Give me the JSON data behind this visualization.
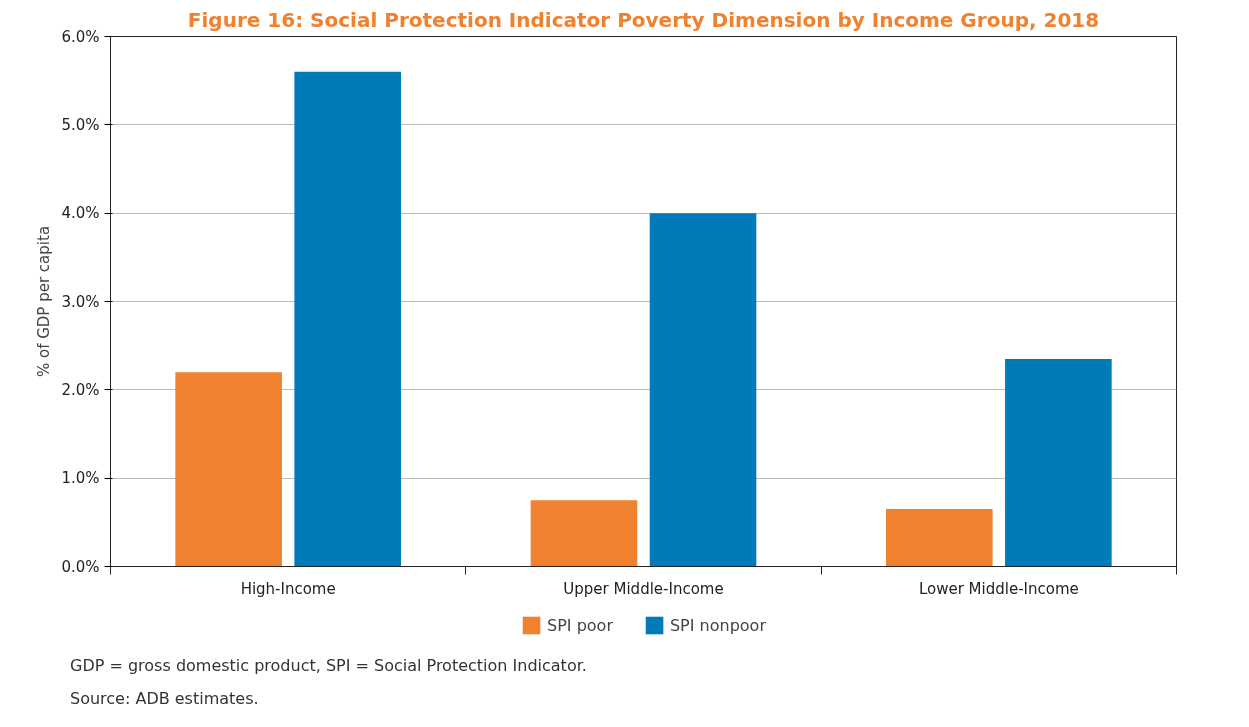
{
  "chart_data": {
    "type": "bar",
    "title": "Figure 16: Social Protection Indicator Poverty Dimension by Income Group, 2018",
    "ylabel": "% of GDP per capita",
    "categories": [
      "High-Income",
      "Upper Middle-Income",
      "Lower Middle-Income"
    ],
    "series": [
      {
        "name": "SPI poor",
        "color": "#f0812e",
        "values": [
          2.2,
          0.75,
          0.65
        ]
      },
      {
        "name": "SPI nonpoor",
        "color": "#007bb8",
        "values": [
          5.6,
          4.0,
          2.35
        ]
      }
    ],
    "ylim": [
      0,
      6
    ],
    "yticks": [
      {
        "value": 0,
        "label": "0.0%"
      },
      {
        "value": 1,
        "label": "1.0%"
      },
      {
        "value": 2,
        "label": "2.0%"
      },
      {
        "value": 3,
        "label": "3.0%"
      },
      {
        "value": 4,
        "label": "4.0%"
      },
      {
        "value": 5,
        "label": "5.0%"
      },
      {
        "value": 6,
        "label": "6.0%"
      }
    ],
    "grid": "y",
    "legend": "bottom",
    "annotations": [
      "GDP = gross domestic product, SPI = Social Protection Indicator.",
      "Source: ADB estimates."
    ]
  }
}
